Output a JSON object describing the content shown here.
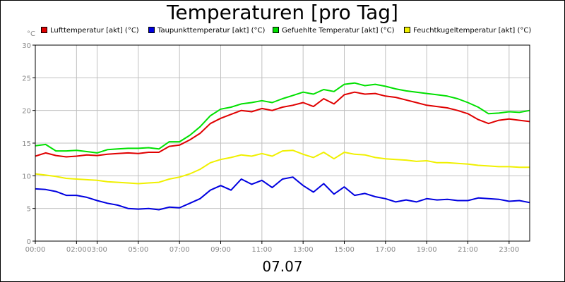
{
  "title": "Temperaturen [pro Tag]",
  "footer": "07.07",
  "colors": {
    "grid": "#c0c0c0",
    "tick_text": "#888888",
    "frame": "#000000"
  },
  "chart_data": {
    "type": "line",
    "ylabel": "°C",
    "xlim": [
      0,
      24
    ],
    "ylim": [
      0,
      30
    ],
    "yticks": [
      0,
      5,
      10,
      15,
      20,
      25,
      30
    ],
    "xticks": [
      {
        "t": 0,
        "label": "00:00"
      },
      {
        "t": 2,
        "label": "02:00"
      },
      {
        "t": 3,
        "label": "03:00"
      },
      {
        "t": 5,
        "label": "05:00"
      },
      {
        "t": 7,
        "label": "07:00"
      },
      {
        "t": 9,
        "label": "09:00"
      },
      {
        "t": 11,
        "label": "11:00"
      },
      {
        "t": 13,
        "label": "13:00"
      },
      {
        "t": 15,
        "label": "15:00"
      },
      {
        "t": 17,
        "label": "17:00"
      },
      {
        "t": 19,
        "label": "19:00"
      },
      {
        "t": 21,
        "label": "21:00"
      },
      {
        "t": 23,
        "label": "23:00"
      }
    ],
    "x": [
      0,
      0.5,
      1,
      1.5,
      2,
      2.5,
      3,
      3.5,
      4,
      4.5,
      5,
      5.5,
      6,
      6.5,
      7,
      7.5,
      8,
      8.5,
      9,
      9.5,
      10,
      10.5,
      11,
      11.5,
      12,
      12.5,
      13,
      13.5,
      14,
      14.5,
      15,
      15.5,
      16,
      16.5,
      17,
      17.5,
      18,
      18.5,
      19,
      19.5,
      20,
      20.5,
      21,
      21.5,
      22,
      22.5,
      23,
      23.5,
      24
    ],
    "series": [
      {
        "name": "Lufttemperatur [akt] (°C)",
        "color": "#e00000",
        "values": [
          13.0,
          13.5,
          13.1,
          12.9,
          13.0,
          13.2,
          13.1,
          13.3,
          13.4,
          13.5,
          13.4,
          13.6,
          13.6,
          14.5,
          14.7,
          15.5,
          16.5,
          18.0,
          18.8,
          19.4,
          20.0,
          19.8,
          20.3,
          20.0,
          20.5,
          20.8,
          21.2,
          20.6,
          21.8,
          21.0,
          22.4,
          22.8,
          22.5,
          22.6,
          22.2,
          22.0,
          21.6,
          21.2,
          20.8,
          20.6,
          20.4,
          20.0,
          19.5,
          18.6,
          18.0,
          18.5,
          18.7,
          18.5,
          18.3
        ]
      },
      {
        "name": "Taupunkttemperatur [akt] (°C)",
        "color": "#0000e0",
        "values": [
          8.0,
          7.9,
          7.6,
          7.0,
          7.0,
          6.7,
          6.2,
          5.8,
          5.5,
          5.0,
          4.9,
          5.0,
          4.8,
          5.2,
          5.1,
          5.8,
          6.5,
          7.8,
          8.5,
          7.8,
          9.5,
          8.7,
          9.3,
          8.2,
          9.5,
          9.8,
          8.5,
          7.5,
          8.8,
          7.2,
          8.3,
          7.0,
          7.3,
          6.8,
          6.5,
          6.0,
          6.3,
          6.0,
          6.5,
          6.3,
          6.4,
          6.2,
          6.2,
          6.6,
          6.5,
          6.4,
          6.1,
          6.2,
          5.9
        ]
      },
      {
        "name": "Gefuehlte Temperatur [akt] (°C)",
        "color": "#00e000",
        "values": [
          14.6,
          14.8,
          13.8,
          13.8,
          13.9,
          13.7,
          13.5,
          14.0,
          14.1,
          14.2,
          14.2,
          14.3,
          14.1,
          15.2,
          15.2,
          16.2,
          17.5,
          19.2,
          20.2,
          20.5,
          21.0,
          21.2,
          21.5,
          21.2,
          21.8,
          22.3,
          22.8,
          22.5,
          23.2,
          22.9,
          24.0,
          24.2,
          23.8,
          24.0,
          23.7,
          23.3,
          23.0,
          22.8,
          22.6,
          22.4,
          22.2,
          21.8,
          21.2,
          20.5,
          19.5,
          19.6,
          19.8,
          19.7,
          20.0
        ]
      },
      {
        "name": "Feuchtkugeltemperatur [akt] (°C)",
        "color": "#f0f000",
        "values": [
          10.3,
          10.1,
          9.9,
          9.6,
          9.5,
          9.4,
          9.3,
          9.1,
          9.0,
          8.9,
          8.8,
          8.9,
          9.0,
          9.5,
          9.8,
          10.3,
          11.0,
          12.0,
          12.5,
          12.8,
          13.2,
          13.0,
          13.4,
          13.0,
          13.8,
          13.9,
          13.3,
          12.8,
          13.6,
          12.6,
          13.6,
          13.3,
          13.2,
          12.8,
          12.6,
          12.5,
          12.4,
          12.2,
          12.3,
          12.0,
          12.0,
          11.9,
          11.8,
          11.6,
          11.5,
          11.4,
          11.4,
          11.3,
          11.3
        ]
      }
    ]
  }
}
